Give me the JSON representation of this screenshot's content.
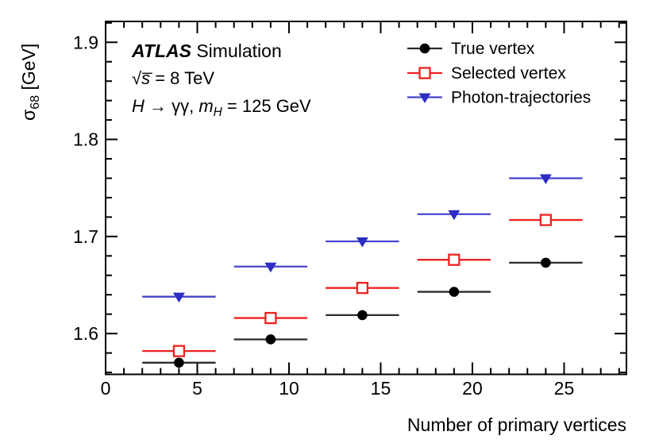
{
  "chart_data": {
    "type": "scatter",
    "title": "",
    "xlabel": "Number of primary vertices",
    "ylabel_rich": [
      {
        "t": "σ"
      },
      {
        "t": "68",
        "sub": true
      },
      {
        "t": " [GeV]"
      }
    ],
    "xlim": [
      0,
      28.4
    ],
    "ylim": [
      1.558,
      1.9215
    ],
    "grid": false,
    "x_ticks": [
      {
        "v": 0,
        "label": "0"
      },
      {
        "v": 5,
        "label": "5"
      },
      {
        "v": 10,
        "label": "10"
      },
      {
        "v": 15,
        "label": "15"
      },
      {
        "v": 20,
        "label": "20"
      },
      {
        "v": 25,
        "label": "25"
      }
    ],
    "x_minor_step": 1,
    "y_ticks": [
      {
        "v": 1.6,
        "label": "1.6"
      },
      {
        "v": 1.7,
        "label": "1.7"
      },
      {
        "v": 1.8,
        "label": "1.8"
      },
      {
        "v": 1.9,
        "label": "1.9"
      }
    ],
    "y_minor_step": 0.02,
    "x": [
      4,
      9,
      14,
      19,
      24
    ],
    "x_error": 2,
    "series": [
      {
        "name": "True vertex",
        "marker": "circle-filled",
        "color": "#000000",
        "line_color": "#2b2b2b",
        "values": [
          1.57,
          1.594,
          1.619,
          1.643,
          1.673
        ]
      },
      {
        "name": "Selected vertex",
        "marker": "square-open",
        "color": "#ee2222",
        "line_color": "#ee2222",
        "values": [
          1.582,
          1.616,
          1.647,
          1.676,
          1.717
        ]
      },
      {
        "name": "Photon-trajectories",
        "marker": "triangle-down-filled",
        "color": "#2d2dc4",
        "line_color": "#4646cc",
        "values": [
          1.638,
          1.669,
          1.695,
          1.723,
          1.76
        ]
      }
    ],
    "legend_position": "top-right"
  },
  "annotations": [
    {
      "id": "atlas-label",
      "segments": [
        {
          "t": "ATLAS",
          "b": true,
          "i": true
        },
        {
          "t": " Simulation"
        }
      ]
    },
    {
      "id": "energy-label",
      "segments": [
        {
          "t": "√"
        },
        {
          "t": "s̅",
          "i": true
        },
        {
          "t": " = 8 TeV"
        }
      ]
    },
    {
      "id": "process-label",
      "segments": [
        {
          "t": "H",
          "i": true
        },
        {
          "t": " → γγ, "
        },
        {
          "t": "m",
          "i": true
        },
        {
          "t": "H",
          "i": true,
          "sub": true
        },
        {
          "t": " = 125 GeV"
        }
      ]
    }
  ]
}
